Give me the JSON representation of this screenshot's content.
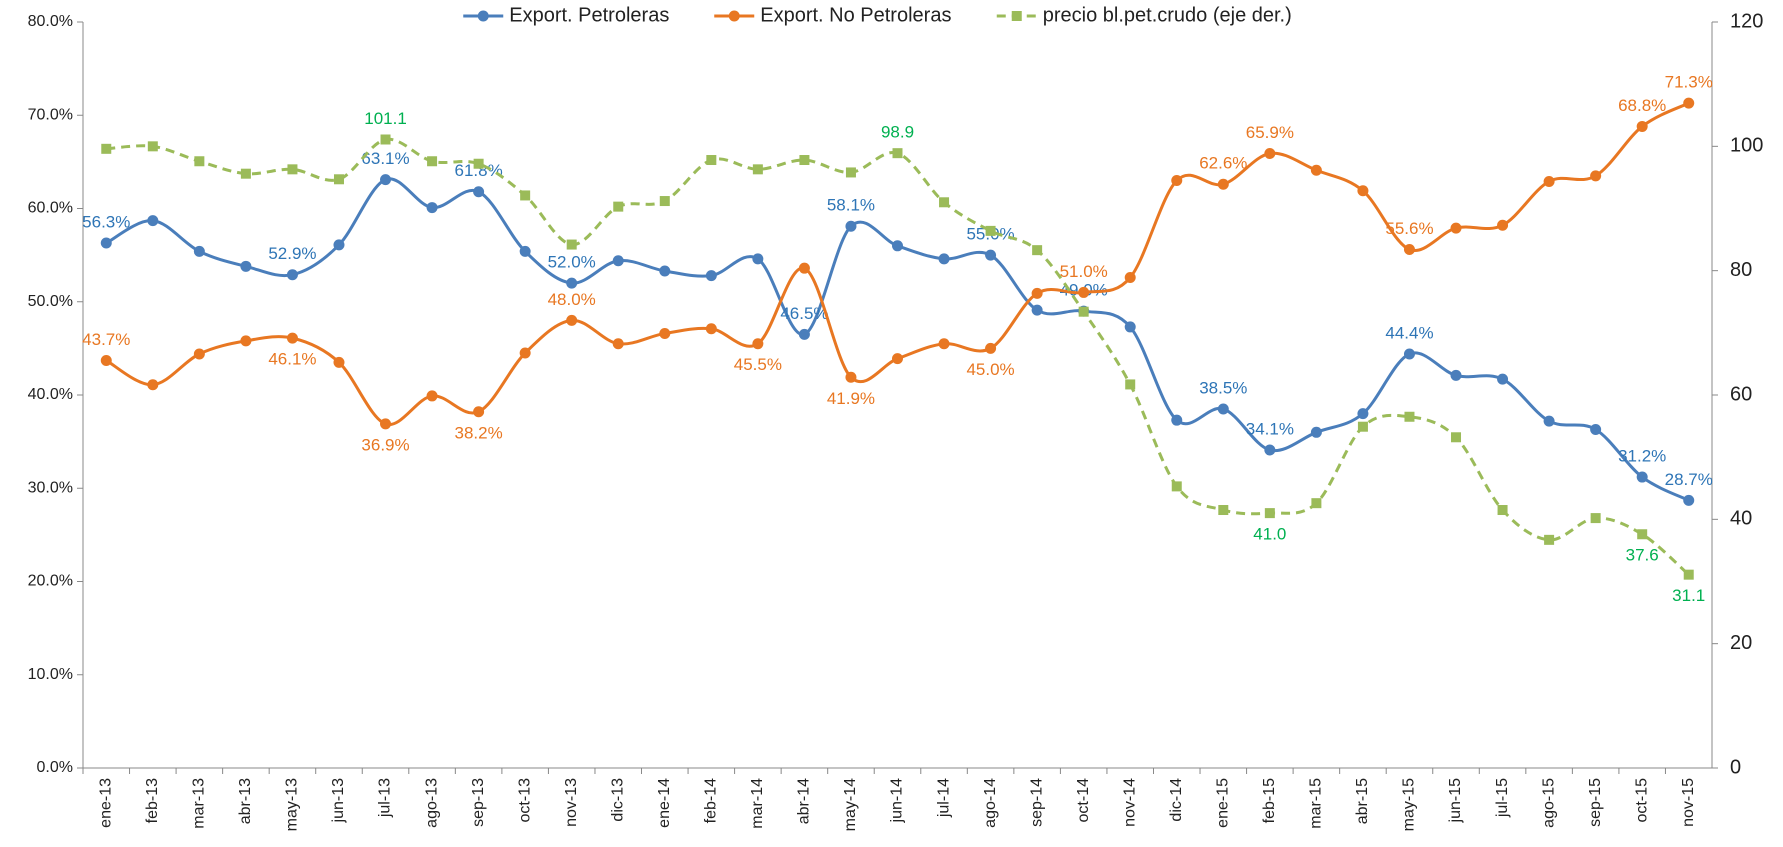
{
  "chart_data": {
    "type": "line",
    "categories": [
      "ene-13",
      "feb-13",
      "mar-13",
      "abr-13",
      "may-13",
      "jun-13",
      "jul-13",
      "ago-13",
      "sep-13",
      "oct-13",
      "nov-13",
      "dic-13",
      "ene-14",
      "feb-14",
      "mar-14",
      "abr-14",
      "may-14",
      "jun-14",
      "jul-14",
      "ago-14",
      "sep-14",
      "oct-14",
      "nov-14",
      "dic-14",
      "ene-15",
      "feb-15",
      "mar-15",
      "abr-15",
      "may-15",
      "jun-15",
      "jul-15",
      "ago-15",
      "sep-15",
      "oct-15",
      "nov-15"
    ],
    "series": [
      {
        "name": "Export. Petroleras",
        "color": "#4a7ebb",
        "label_color": "#2e75b6",
        "dash": false,
        "marker": "circle",
        "values": [
          56.3,
          58.7,
          55.4,
          53.8,
          52.9,
          56.1,
          63.1,
          60.1,
          61.8,
          55.4,
          52.0,
          54.4,
          53.3,
          52.8,
          54.6,
          46.5,
          58.1,
          56.0,
          54.6,
          55.0,
          49.1,
          49.0,
          47.3,
          37.3,
          38.5,
          34.1,
          36.0,
          38.0,
          44.4,
          42.1,
          41.7,
          37.2,
          36.3,
          31.2,
          28.7
        ],
        "value_labels": [
          "56.3%",
          null,
          null,
          null,
          "52.9%",
          null,
          "63.1%",
          null,
          "61.8%",
          null,
          "52.0%",
          null,
          null,
          null,
          null,
          "46.5%",
          "58.1%",
          null,
          null,
          "55.0%",
          null,
          "49.0%",
          null,
          null,
          "38.5%",
          "34.1%",
          null,
          null,
          "44.4%",
          null,
          null,
          null,
          null,
          "31.2%",
          "28.7%"
        ]
      },
      {
        "name": "Export. No Petroleras",
        "color": "#e87722",
        "label_color": "#e87722",
        "dash": false,
        "marker": "circle",
        "values": [
          43.7,
          41.1,
          44.4,
          45.8,
          46.1,
          43.5,
          36.9,
          39.9,
          38.2,
          44.5,
          48.0,
          45.5,
          46.6,
          47.1,
          45.5,
          53.6,
          41.9,
          43.9,
          45.5,
          45.0,
          50.9,
          51.0,
          52.6,
          63.0,
          62.6,
          65.9,
          64.1,
          61.9,
          55.6,
          57.9,
          58.2,
          62.9,
          63.5,
          68.8,
          71.3
        ],
        "value_labels": [
          "43.7%",
          null,
          null,
          null,
          "46.1%",
          null,
          "36.9%",
          null,
          "38.2%",
          null,
          "48.0%",
          null,
          null,
          null,
          "45.5%",
          null,
          "41.9%",
          null,
          null,
          "45.0%",
          null,
          "51.0%",
          null,
          null,
          "62.6%",
          "65.9%",
          null,
          null,
          "55.6%",
          null,
          null,
          null,
          null,
          "68.8%",
          "71.3%"
        ]
      },
      {
        "name": "precio bl.pet.crudo (eje der.)",
        "color": "#9bbb59",
        "label_color": "#00b050",
        "dash": true,
        "marker": "square",
        "axis": "y2",
        "values": [
          99.6,
          100.0,
          97.6,
          95.6,
          96.3,
          94.7,
          101.1,
          97.6,
          97.2,
          92.1,
          84.2,
          90.3,
          91.2,
          97.8,
          96.3,
          97.8,
          95.8,
          98.9,
          91.0,
          86.4,
          83.3,
          73.4,
          61.7,
          45.3,
          41.5,
          41.0,
          42.6,
          54.9,
          56.5,
          53.2,
          41.5,
          36.7,
          40.2,
          37.6,
          31.1
        ],
        "value_labels": [
          null,
          null,
          null,
          null,
          null,
          null,
          "101.1",
          null,
          null,
          null,
          null,
          null,
          null,
          null,
          null,
          null,
          null,
          "98.9",
          null,
          null,
          null,
          null,
          null,
          null,
          null,
          "41.0",
          null,
          null,
          null,
          null,
          null,
          null,
          null,
          "37.6",
          "31.1"
        ]
      }
    ],
    "ylim": [
      0,
      80
    ],
    "yticks": [
      {
        "value": 0,
        "label": "0.0%"
      },
      {
        "value": 10,
        "label": "10.0%"
      },
      {
        "value": 20,
        "label": "20.0%"
      },
      {
        "value": 30,
        "label": "30.0%"
      },
      {
        "value": 40,
        "label": "40.0%"
      },
      {
        "value": 50,
        "label": "50.0%"
      },
      {
        "value": 60,
        "label": "60.0%"
      },
      {
        "value": 70,
        "label": "70.0%"
      },
      {
        "value": 80,
        "label": "80.0%"
      }
    ],
    "y2lim": [
      0,
      120
    ],
    "y2ticks": [
      0,
      20,
      40,
      60,
      80,
      100,
      120
    ],
    "legend": "top"
  }
}
